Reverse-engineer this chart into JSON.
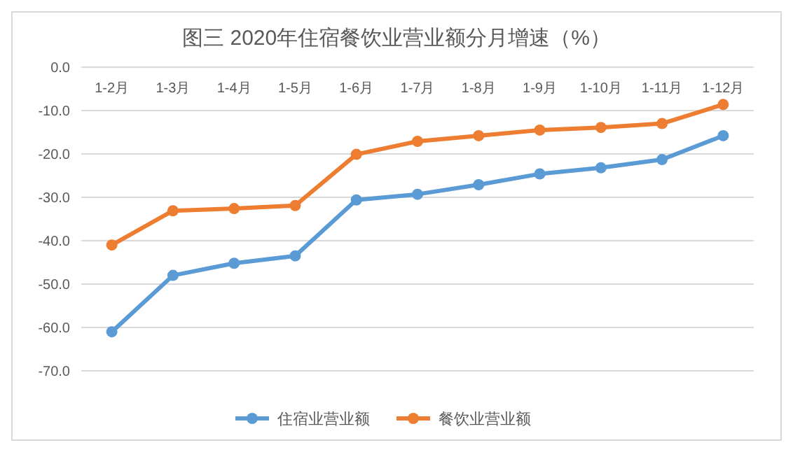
{
  "chart_data": {
    "type": "line",
    "title": "图三  2020年住宿餐饮业营业额分月增速（%）",
    "categories": [
      "1-2月",
      "1-3月",
      "1-4月",
      "1-5月",
      "1-6月",
      "1-7月",
      "1-8月",
      "1-9月",
      "1-10月",
      "1-11月",
      "1-12月"
    ],
    "series": [
      {
        "name": "住宿业营业额",
        "color": "#5b9bd5",
        "values": [
          -61.0,
          -48.0,
          -45.2,
          -43.5,
          -30.6,
          -29.3,
          -27.1,
          -24.6,
          -23.2,
          -21.3,
          -15.8
        ]
      },
      {
        "name": "餐饮业营业额",
        "color": "#ed7d31",
        "values": [
          -41.0,
          -33.1,
          -32.6,
          -31.9,
          -20.1,
          -17.1,
          -15.8,
          -14.5,
          -13.9,
          -13.0,
          -8.6
        ]
      }
    ],
    "ylim": [
      -70,
      0
    ],
    "yticks": [
      {
        "value": 0,
        "label": "0.0"
      },
      {
        "value": -10,
        "label": "-10.0"
      },
      {
        "value": -20,
        "label": "-20.0"
      },
      {
        "value": -30,
        "label": "-30.0"
      },
      {
        "value": -40,
        "label": "-40.0"
      },
      {
        "value": -50,
        "label": "-50.0"
      },
      {
        "value": -60,
        "label": "-60.0"
      },
      {
        "value": -70,
        "label": "-70.0"
      }
    ],
    "grid": "y",
    "legend": "bottom",
    "marker": "circle",
    "line_style": "solid"
  }
}
